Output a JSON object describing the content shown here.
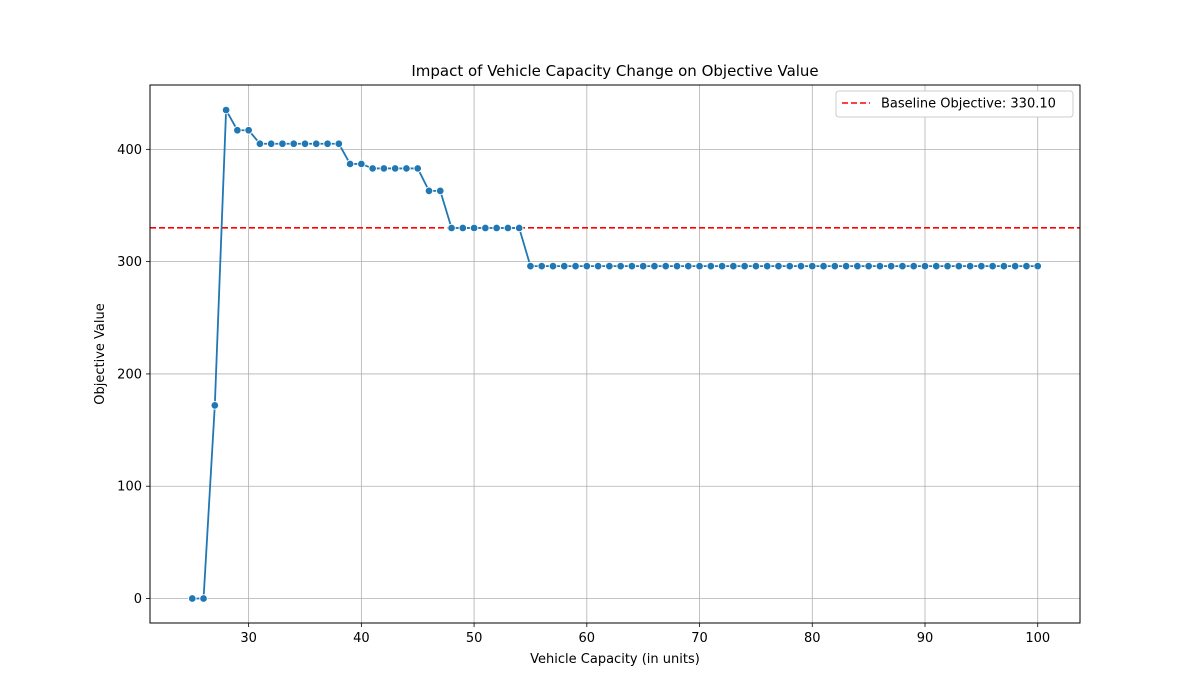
{
  "chart_data": {
    "type": "line",
    "title": "Impact of Vehicle Capacity Change on Objective Value",
    "xlabel": "Vehicle Capacity (in units)",
    "ylabel": "Objective Value",
    "xlim": [
      21.25,
      103.75
    ],
    "ylim": [
      -21.8,
      457.3
    ],
    "xticks": [
      30,
      40,
      50,
      60,
      70,
      80,
      90,
      100
    ],
    "yticks": [
      0,
      100,
      200,
      300,
      400
    ],
    "grid": true,
    "legend_position": "top-right",
    "series": [
      {
        "name": "",
        "color": "#1f77b4",
        "marker": "circle",
        "x": [
          25,
          26,
          27,
          28,
          29,
          30,
          31,
          32,
          33,
          34,
          35,
          36,
          37,
          38,
          39,
          40,
          41,
          42,
          43,
          44,
          45,
          46,
          47,
          48,
          49,
          50,
          51,
          52,
          53,
          54,
          55,
          56,
          57,
          58,
          59,
          60,
          61,
          62,
          63,
          64,
          65,
          66,
          67,
          68,
          69,
          70,
          71,
          72,
          73,
          74,
          75,
          76,
          77,
          78,
          79,
          80,
          81,
          82,
          83,
          84,
          85,
          86,
          87,
          88,
          89,
          90,
          91,
          92,
          93,
          94,
          95,
          96,
          97,
          98,
          99,
          100
        ],
        "y": [
          0,
          0,
          172,
          435,
          417,
          417,
          405,
          405,
          405,
          405,
          405,
          405,
          405,
          405,
          387,
          387,
          383,
          383,
          383,
          383,
          383,
          363,
          363,
          330,
          330,
          330,
          330,
          330,
          330,
          330,
          296,
          296,
          296,
          296,
          296,
          296,
          296,
          296,
          296,
          296,
          296,
          296,
          296,
          296,
          296,
          296,
          296,
          296,
          296,
          296,
          296,
          296,
          296,
          296,
          296,
          296,
          296,
          296,
          296,
          296,
          296,
          296,
          296,
          296,
          296,
          296,
          296,
          296,
          296,
          296,
          296,
          296,
          296,
          296,
          296,
          296
        ]
      }
    ],
    "reference_line": {
      "label": "Baseline Objective: 330.10",
      "value": 330.1,
      "color": "#ff0000",
      "style": "dashed"
    }
  }
}
